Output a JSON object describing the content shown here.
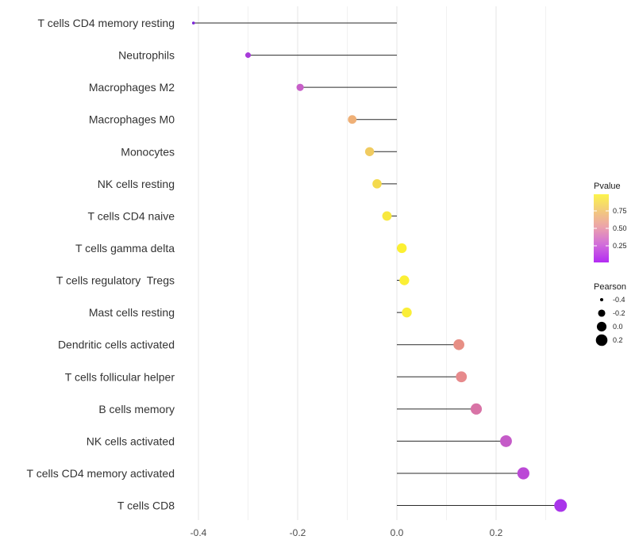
{
  "chart_data": {
    "type": "lollipop",
    "orientation": "horizontal",
    "title": "",
    "xlabel": "",
    "ylabel": "",
    "baseline_x": 0,
    "xlim": [
      -0.45,
      0.36
    ],
    "x_major_ticks": [
      {
        "label": "-0.4",
        "value": -0.4
      },
      {
        "label": "-0.2",
        "value": -0.2
      },
      {
        "label": "0.0",
        "value": 0.0
      },
      {
        "label": "0.2",
        "value": 0.2
      }
    ],
    "x_minor_ticks": [
      -0.3,
      -0.1,
      0.1,
      0.3
    ],
    "grid": {
      "vertical": true,
      "horizontal": false
    },
    "points": [
      {
        "label": "T cells CD4 memory resting",
        "pearson": -0.41,
        "pvalue_approx": 0.05,
        "dot_color": "#7a23d8"
      },
      {
        "label": "Neutrophils",
        "pearson": -0.3,
        "pvalue_approx": 0.12,
        "dot_color": "#a73bd9"
      },
      {
        "label": "Macrophages M2",
        "pearson": -0.195,
        "pvalue_approx": 0.27,
        "dot_color": "#c75fc8"
      },
      {
        "label": "Macrophages M0",
        "pearson": -0.09,
        "pvalue_approx": 0.57,
        "dot_color": "#efb077"
      },
      {
        "label": "Monocytes",
        "pearson": -0.055,
        "pvalue_approx": 0.68,
        "dot_color": "#f0cb60"
      },
      {
        "label": "NK cells resting",
        "pearson": -0.04,
        "pvalue_approx": 0.74,
        "dot_color": "#f4da4d"
      },
      {
        "label": "T cells CD4 naive",
        "pearson": -0.02,
        "pvalue_approx": 0.8,
        "dot_color": "#f8e83e"
      },
      {
        "label": "T cells gamma delta",
        "pearson": 0.01,
        "pvalue_approx": 0.88,
        "dot_color": "#fcf032"
      },
      {
        "label": "T cells regulatory  Tregs",
        "pearson": 0.015,
        "pvalue_approx": 0.87,
        "dot_color": "#fbef35"
      },
      {
        "label": "Mast cells resting",
        "pearson": 0.02,
        "pvalue_approx": 0.86,
        "dot_color": "#faee38"
      },
      {
        "label": "Dendritic cells activated",
        "pearson": 0.125,
        "pvalue_approx": 0.46,
        "dot_color": "#e78f85"
      },
      {
        "label": "T cells follicular helper",
        "pearson": 0.13,
        "pvalue_approx": 0.45,
        "dot_color": "#e78a8c"
      },
      {
        "label": "B cells memory",
        "pearson": 0.16,
        "pvalue_approx": 0.35,
        "dot_color": "#d873a6"
      },
      {
        "label": "NK cells activated",
        "pearson": 0.22,
        "pvalue_approx": 0.26,
        "dot_color": "#c55bc8"
      },
      {
        "label": "T cells CD4 memory activated",
        "pearson": 0.255,
        "pvalue_approx": 0.2,
        "dot_color": "#bb49d6"
      },
      {
        "label": "T cells CD8",
        "pearson": 0.33,
        "pvalue_approx": 0.09,
        "dot_color": "#a935ea"
      }
    ],
    "legends": {
      "pvalue": {
        "title": "Pvalue",
        "ticks": [
          {
            "label": "0.75",
            "value": 0.75
          },
          {
            "label": "0.50",
            "value": 0.5
          },
          {
            "label": "0.25",
            "value": 0.25
          }
        ],
        "gradient_stops": [
          {
            "offset": 0.0,
            "color": "#fcf44c"
          },
          {
            "offset": 0.22,
            "color": "#f3ce78"
          },
          {
            "offset": 0.47,
            "color": "#eca4a9"
          },
          {
            "offset": 0.73,
            "color": "#d26fd9"
          },
          {
            "offset": 1.0,
            "color": "#b32bf3"
          }
        ]
      },
      "pearson": {
        "title": "Pearson",
        "items": [
          {
            "label": "-0.4",
            "value": -0.4
          },
          {
            "label": "-0.2",
            "value": -0.2
          },
          {
            "label": "0.0",
            "value": 0.0
          },
          {
            "label": "0.2",
            "value": 0.2
          }
        ],
        "dot_color": "#000000"
      }
    },
    "style": {
      "background": "#ffffff",
      "segment_color": "#2a2a2a",
      "grid_major_color": "#e4e4e4",
      "grid_minor_color": "#f1f1f1",
      "category_text_color": "#333333",
      "tick_text_color": "#4a4a4a"
    }
  }
}
